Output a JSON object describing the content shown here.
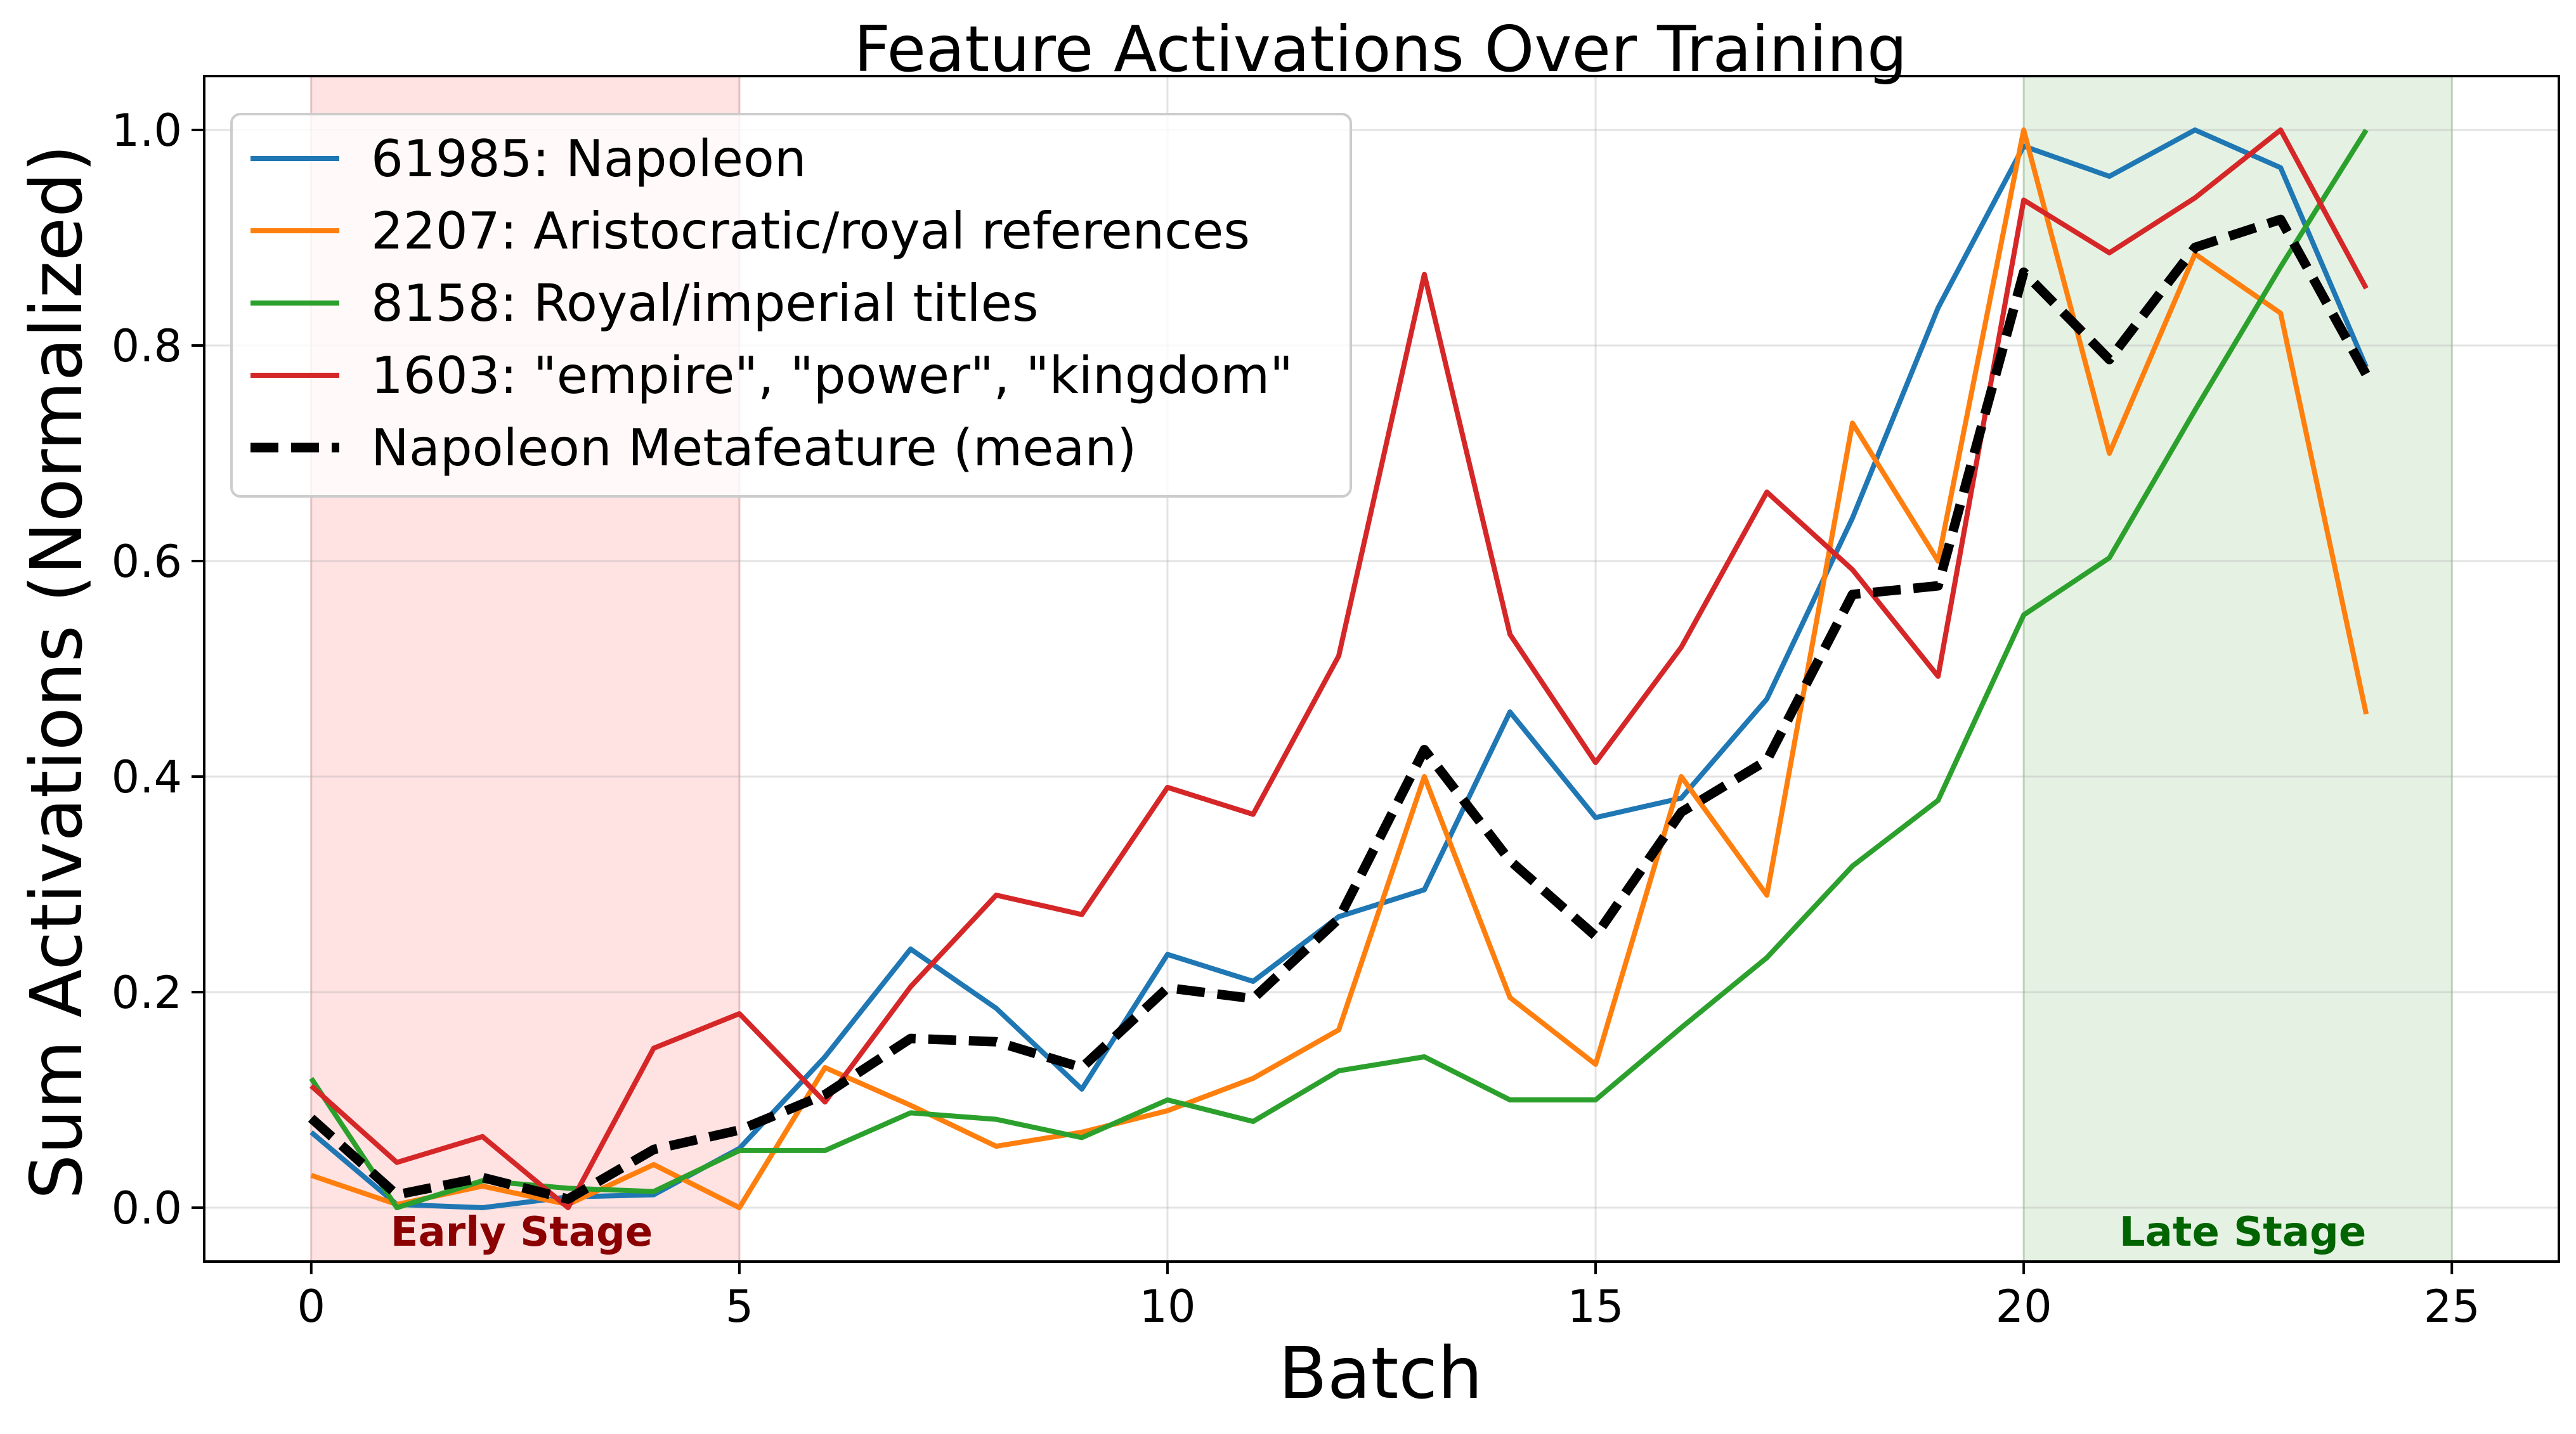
{
  "chart_data": {
    "type": "line",
    "title": "Feature Activations Over Training",
    "xlabel": "Batch",
    "ylabel": "Sum Activations (Normalized)",
    "xlim": [
      -1.25,
      26.25
    ],
    "ylim": [
      -0.05,
      1.05
    ],
    "xticks": [
      0,
      5,
      10,
      15,
      20,
      25
    ],
    "yticks": [
      0.0,
      0.2,
      0.4,
      0.6,
      0.8,
      1.0
    ],
    "xtick_labels": [
      "0",
      "5",
      "10",
      "15",
      "20",
      "25"
    ],
    "ytick_labels": [
      "0.0",
      "0.2",
      "0.4",
      "0.6",
      "0.8",
      "1.0"
    ],
    "grid": true,
    "legend_position": "top-left",
    "x": [
      0,
      1,
      2,
      3,
      4,
      5,
      6,
      7,
      8,
      9,
      10,
      11,
      12,
      13,
      14,
      15,
      16,
      17,
      18,
      19,
      20,
      21,
      22,
      23,
      24
    ],
    "series": [
      {
        "name": "61985: Napoleon",
        "color": "#1f77b4",
        "dashed": false,
        "values": [
          0.07,
          0.003,
          0.0,
          0.01,
          0.012,
          0.055,
          0.14,
          0.24,
          0.185,
          0.11,
          0.235,
          0.21,
          0.27,
          0.295,
          0.46,
          0.362,
          0.38,
          0.472,
          0.64,
          0.835,
          0.985,
          0.957,
          1.0,
          0.965,
          0.78
        ]
      },
      {
        "name": "2207: Aristocratic/royal references",
        "color": "#ff7f0e",
        "dashed": false,
        "values": [
          0.03,
          0.003,
          0.02,
          0.003,
          0.04,
          0.0,
          0.13,
          0.095,
          0.057,
          0.07,
          0.09,
          0.12,
          0.165,
          0.4,
          0.195,
          0.133,
          0.4,
          0.29,
          0.728,
          0.6,
          1.0,
          0.7,
          0.885,
          0.83,
          0.458
        ]
      },
      {
        "name": "8158: Royal/imperial titles",
        "color": "#2ca02c",
        "dashed": false,
        "values": [
          0.12,
          0.0,
          0.025,
          0.018,
          0.015,
          0.053,
          0.053,
          0.088,
          0.082,
          0.065,
          0.1,
          0.08,
          0.127,
          0.14,
          0.1,
          0.1,
          0.167,
          0.232,
          0.317,
          0.378,
          0.55,
          0.603,
          0.74,
          0.873,
          1.0
        ]
      },
      {
        "name": "1603: \"empire\", \"power\", \"kingdom\"",
        "color": "#d62728",
        "dashed": false,
        "values": [
          0.113,
          0.042,
          0.066,
          0.0,
          0.148,
          0.18,
          0.098,
          0.205,
          0.29,
          0.272,
          0.39,
          0.365,
          0.512,
          0.866,
          0.532,
          0.413,
          0.52,
          0.664,
          0.592,
          0.493,
          0.935,
          0.886,
          0.937,
          1.0,
          0.853
        ]
      },
      {
        "name": "Napoleon Metafeature (mean)",
        "color": "#000000",
        "dashed": true,
        "values": [
          0.083,
          0.012,
          0.028,
          0.008,
          0.054,
          0.072,
          0.105,
          0.157,
          0.154,
          0.13,
          0.204,
          0.194,
          0.268,
          0.425,
          0.322,
          0.252,
          0.367,
          0.415,
          0.569,
          0.577,
          0.868,
          0.787,
          0.891,
          0.917,
          0.773
        ]
      }
    ],
    "regions": [
      {
        "label": "Early Stage",
        "x_start": 0,
        "x_end": 5,
        "color": "#ffb3b3",
        "label_color": "#8b0000"
      },
      {
        "label": "Late Stage",
        "x_start": 20,
        "x_end": 25,
        "color": "#a8d5a2",
        "label_color": "#006400"
      }
    ]
  }
}
